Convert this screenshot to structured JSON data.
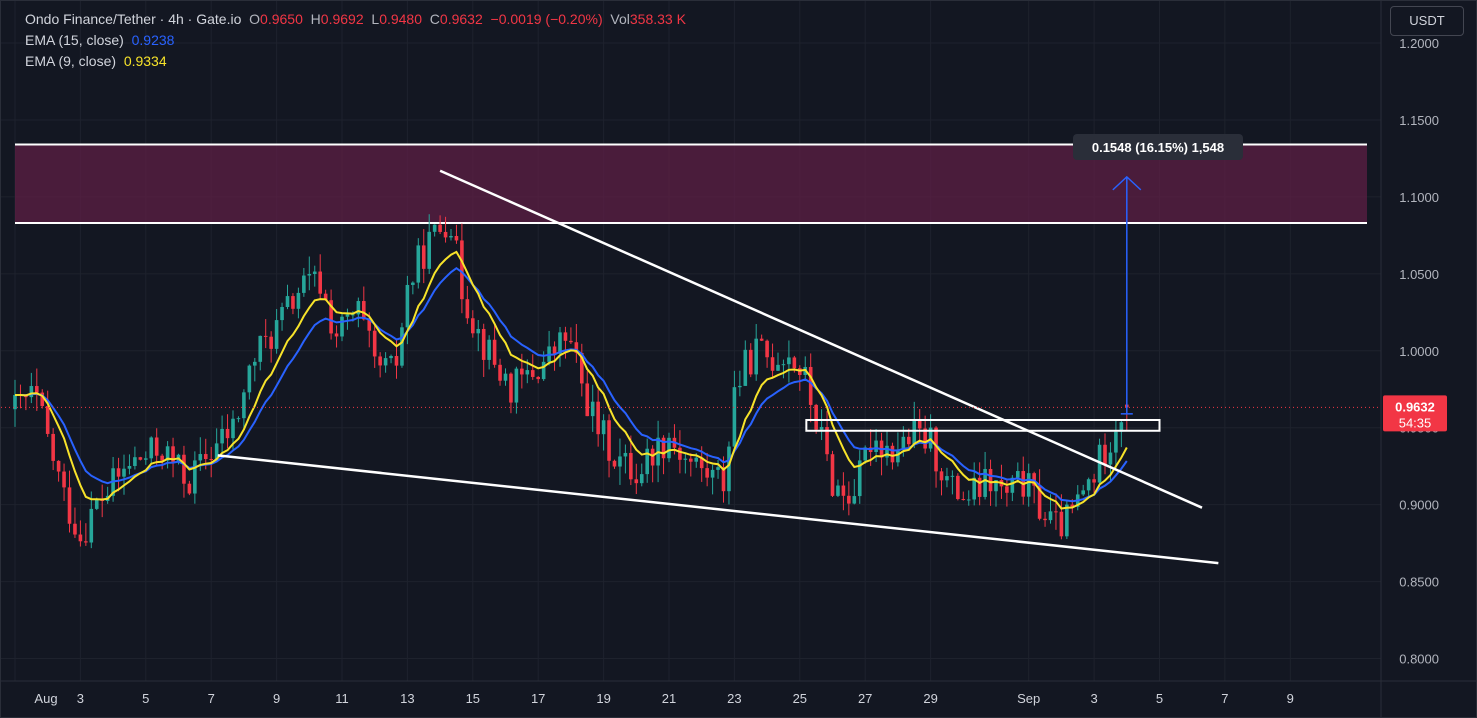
{
  "header": {
    "symbol": "Ondo Finance/Tether",
    "interval": "4h",
    "exchange": "Gate.io",
    "sep": " · ",
    "o_label": "O",
    "o_value": "0.9650",
    "h_label": "H",
    "h_value": "0.9692",
    "l_label": "L",
    "l_value": "0.9480",
    "c_label": "C",
    "c_value": "0.9632",
    "change": "−0.0019 (−0.20%)",
    "vol_label": "Vol",
    "vol_value": "358.33 K"
  },
  "indicators": {
    "ema15_label": "EMA (15, close)",
    "ema15_value": "0.9238",
    "ema9_label": "EMA (9, close)",
    "ema9_value": "0.9334"
  },
  "unit_button": "USDT",
  "colors": {
    "bg": "#131722",
    "up": "#26a69a",
    "down": "#f23645",
    "ema15": "#2962ff",
    "ema9": "#f7e32a",
    "zone": "#5d1f44",
    "grid": "#1e222d"
  },
  "chart_data": {
    "type": "candlestick",
    "title": "Ondo Finance/Tether · 4h · Gate.io",
    "ylim": [
      0.78,
      1.205
    ],
    "y_ticks": [
      "0.8000",
      "0.8500",
      "0.9000",
      "0.9500",
      "1.0000",
      "1.0500",
      "1.1000",
      "1.1500",
      "1.2000"
    ],
    "x_ticks": [
      "Aug",
      "3",
      "5",
      "7",
      "9",
      "11",
      "13",
      "15",
      "17",
      "19",
      "21",
      "23",
      "25",
      "27",
      "29",
      "Sep",
      "3",
      "5",
      "7",
      "9"
    ],
    "x_tick_days": [
      1,
      3,
      5,
      7,
      9,
      11,
      13,
      15,
      17,
      19,
      21,
      23,
      25,
      27,
      29,
      32,
      34,
      36,
      38,
      40
    ],
    "last_price": "0.9632",
    "countdown": "54:35",
    "resistance_zone": {
      "lower": 1.083,
      "upper": 1.134
    },
    "descending_trendline": {
      "start": {
        "day": 14.0,
        "price": 1.117
      },
      "end": {
        "day": 37.3,
        "price": 0.898
      }
    },
    "support_trendline": {
      "start": {
        "day": 7.2,
        "price": 0.932
      },
      "end": {
        "day": 37.8,
        "price": 0.862
      }
    },
    "breakout_box": {
      "start_day": 25.2,
      "end_day": 36.0,
      "lower": 0.948,
      "upper": 0.955
    },
    "measure": {
      "day": 35.0,
      "from": 0.959,
      "to": 1.113,
      "label": "0.1548 (16.15%) 1,548"
    },
    "price_path_anchors": [
      [
        1.0,
        0.962
      ],
      [
        1.6,
        0.972
      ],
      [
        2.5,
        0.905
      ],
      [
        3.0,
        0.88
      ],
      [
        3.5,
        0.9
      ],
      [
        4.5,
        0.926
      ],
      [
        5.5,
        0.936
      ],
      [
        6.3,
        0.915
      ],
      [
        7.0,
        0.935
      ],
      [
        7.7,
        0.95
      ],
      [
        8.3,
        0.995
      ],
      [
        9.0,
        1.015
      ],
      [
        9.7,
        1.04
      ],
      [
        10.3,
        1.045
      ],
      [
        10.8,
        1.01
      ],
      [
        11.5,
        1.025
      ],
      [
        12.0,
        0.99
      ],
      [
        12.6,
        0.985
      ],
      [
        13.0,
        1.04
      ],
      [
        13.5,
        1.065
      ],
      [
        14.0,
        1.08
      ],
      [
        14.3,
        1.09
      ],
      [
        14.6,
        1.045
      ],
      [
        15.2,
        1.01
      ],
      [
        15.7,
        0.99
      ],
      [
        16.2,
        0.975
      ],
      [
        16.8,
        0.985
      ],
      [
        17.3,
        0.995
      ],
      [
        17.9,
        1.01
      ],
      [
        18.3,
        0.98
      ],
      [
        18.8,
        0.95
      ],
      [
        19.4,
        0.93
      ],
      [
        20.0,
        0.92
      ],
      [
        20.5,
        0.935
      ],
      [
        21.0,
        0.945
      ],
      [
        21.5,
        0.93
      ],
      [
        22.2,
        0.92
      ],
      [
        22.7,
        0.915
      ],
      [
        23.0,
        0.975
      ],
      [
        23.6,
        1.0
      ],
      [
        24.1,
        0.995
      ],
      [
        24.6,
        1.0
      ],
      [
        25.1,
        0.985
      ],
      [
        25.5,
        0.955
      ],
      [
        26.0,
        0.915
      ],
      [
        26.4,
        0.905
      ],
      [
        26.8,
        0.915
      ],
      [
        27.2,
        0.945
      ],
      [
        27.8,
        0.935
      ],
      [
        28.5,
        0.945
      ],
      [
        29.0,
        0.94
      ],
      [
        29.6,
        0.91
      ],
      [
        30.2,
        0.905
      ],
      [
        30.8,
        0.915
      ],
      [
        31.3,
        0.905
      ],
      [
        31.8,
        0.915
      ],
      [
        32.3,
        0.9
      ],
      [
        32.8,
        0.885
      ],
      [
        33.2,
        0.89
      ],
      [
        33.6,
        0.905
      ],
      [
        34.0,
        0.92
      ],
      [
        34.5,
        0.945
      ],
      [
        34.9,
        0.963
      ]
    ]
  }
}
